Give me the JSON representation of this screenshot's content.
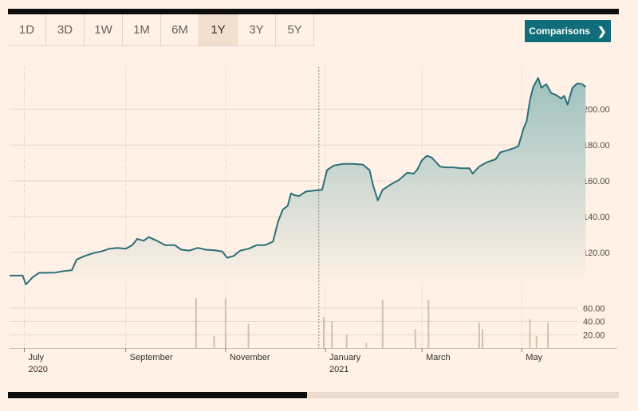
{
  "range_tabs": [
    {
      "label": "1D"
    },
    {
      "label": "3D"
    },
    {
      "label": "1W"
    },
    {
      "label": "1M"
    },
    {
      "label": "6M"
    },
    {
      "label": "1Y",
      "active": true
    },
    {
      "label": "3Y"
    },
    {
      "label": "5Y"
    }
  ],
  "comparisons": {
    "label": "Comparisons",
    "icon": "chevron-right-icon"
  },
  "colors": {
    "line": "#2b6f78",
    "area_top": "#9fc1c0",
    "area_bottom": "#fff1e5",
    "volume_bar": "#d4bfae",
    "background": "#fff1e5"
  },
  "scrollbar": {
    "visible_fraction": 0.49
  },
  "chart_data": {
    "type": "area",
    "title": "",
    "xlabel": "",
    "ylabel": "",
    "grid": true,
    "price_axis": {
      "ylim": [
        103,
        221
      ],
      "ticks": [
        "120.00",
        "140.00",
        "160.00",
        "180.00",
        "200.00"
      ],
      "side": "right"
    },
    "volume_axis": {
      "ylim": [
        0,
        80
      ],
      "ticks": [
        "20.00",
        "40.00",
        "60.00"
      ],
      "side": "right"
    },
    "x_axis": {
      "range": [
        "2020-06-22",
        "2021-06-04"
      ],
      "ticks": [
        {
          "date": "2020-07-01",
          "label": "July",
          "sublabel": "2020"
        },
        {
          "date": "2020-09-01",
          "label": "September",
          "sublabel": ""
        },
        {
          "date": "2020-11-01",
          "label": "November",
          "sublabel": ""
        },
        {
          "date": "2021-01-01",
          "label": "January",
          "sublabel": "2021"
        },
        {
          "date": "2021-03-01",
          "label": "March",
          "sublabel": ""
        },
        {
          "date": "2021-05-01",
          "label": "May",
          "sublabel": ""
        }
      ]
    },
    "price_series": [
      [
        "2020-06-22",
        107.0
      ],
      [
        "2020-06-30",
        107.0
      ],
      [
        "2020-07-02",
        102.0
      ],
      [
        "2020-07-06",
        106.0
      ],
      [
        "2020-07-10",
        108.5
      ],
      [
        "2020-07-20",
        108.7
      ],
      [
        "2020-07-25",
        109.5
      ],
      [
        "2020-07-30",
        110.0
      ],
      [
        "2020-08-02",
        116.0
      ],
      [
        "2020-08-07",
        118.0
      ],
      [
        "2020-08-12",
        119.5
      ],
      [
        "2020-08-17",
        120.5
      ],
      [
        "2020-08-22",
        122.0
      ],
      [
        "2020-08-27",
        122.5
      ],
      [
        "2020-09-01",
        122.0
      ],
      [
        "2020-09-05",
        124.0
      ],
      [
        "2020-09-08",
        127.5
      ],
      [
        "2020-09-12",
        126.5
      ],
      [
        "2020-09-15",
        128.5
      ],
      [
        "2020-09-20",
        126.5
      ],
      [
        "2020-09-25",
        124.0
      ],
      [
        "2020-10-01",
        124.0
      ],
      [
        "2020-10-05",
        121.5
      ],
      [
        "2020-10-10",
        121.0
      ],
      [
        "2020-10-15",
        122.5
      ],
      [
        "2020-10-20",
        121.5
      ],
      [
        "2020-10-25",
        121.2
      ],
      [
        "2020-10-30",
        120.5
      ],
      [
        "2020-11-02",
        117.0
      ],
      [
        "2020-11-06",
        118.0
      ],
      [
        "2020-11-10",
        121.0
      ],
      [
        "2020-11-15",
        122.0
      ],
      [
        "2020-11-20",
        124.0
      ],
      [
        "2020-11-25",
        124.0
      ],
      [
        "2020-11-30",
        126.0
      ],
      [
        "2020-12-03",
        137.0
      ],
      [
        "2020-12-06",
        144.0
      ],
      [
        "2020-12-09",
        146.0
      ],
      [
        "2020-12-11",
        153.0
      ],
      [
        "2020-12-13",
        152.0
      ],
      [
        "2020-12-16",
        151.5
      ],
      [
        "2020-12-20",
        154.0
      ],
      [
        "2020-12-25",
        154.5
      ],
      [
        "2020-12-30",
        155.0
      ],
      [
        "2021-01-02",
        166.0
      ],
      [
        "2021-01-06",
        168.5
      ],
      [
        "2021-01-12",
        169.5
      ],
      [
        "2021-01-18",
        169.5
      ],
      [
        "2021-01-24",
        169.0
      ],
      [
        "2021-01-28",
        166.0
      ],
      [
        "2021-01-30",
        158.0
      ],
      [
        "2021-02-02",
        149.0
      ],
      [
        "2021-02-05",
        155.0
      ],
      [
        "2021-02-10",
        158.0
      ],
      [
        "2021-02-15",
        160.5
      ],
      [
        "2021-02-20",
        164.5
      ],
      [
        "2021-02-24",
        164.0
      ],
      [
        "2021-02-26",
        166.0
      ],
      [
        "2021-03-01",
        171.5
      ],
      [
        "2021-03-04",
        174.0
      ],
      [
        "2021-03-07",
        173.0
      ],
      [
        "2021-03-10",
        170.0
      ],
      [
        "2021-03-12",
        168.0
      ],
      [
        "2021-03-15",
        167.5
      ],
      [
        "2021-03-20",
        167.5
      ],
      [
        "2021-03-25",
        167.0
      ],
      [
        "2021-03-30",
        167.0
      ],
      [
        "2021-04-01",
        164.0
      ],
      [
        "2021-04-05",
        168.0
      ],
      [
        "2021-04-10",
        170.5
      ],
      [
        "2021-04-15",
        172.0
      ],
      [
        "2021-04-18",
        176.0
      ],
      [
        "2021-04-22",
        177.0
      ],
      [
        "2021-04-27",
        178.5
      ],
      [
        "2021-04-29",
        179.5
      ],
      [
        "2021-05-02",
        189.0
      ],
      [
        "2021-05-04",
        193.5
      ],
      [
        "2021-05-06",
        205.0
      ],
      [
        "2021-05-08",
        212.5
      ],
      [
        "2021-05-11",
        217.5
      ],
      [
        "2021-05-13",
        212.0
      ],
      [
        "2021-05-16",
        214.0
      ],
      [
        "2021-05-19",
        209.0
      ],
      [
        "2021-05-22",
        208.0
      ],
      [
        "2021-05-25",
        206.0
      ],
      [
        "2021-05-27",
        207.5
      ],
      [
        "2021-05-29",
        202.5
      ],
      [
        "2021-06-01",
        212.0
      ],
      [
        "2021-06-04",
        214.5
      ],
      [
        "2021-06-07",
        214.0
      ],
      [
        "2021-06-09",
        212.5
      ]
    ],
    "volume_series": [
      [
        "2020-10-14",
        75
      ],
      [
        "2020-10-25",
        18
      ],
      [
        "2020-11-01",
        75
      ],
      [
        "2020-11-15",
        36
      ],
      [
        "2020-12-31",
        46
      ],
      [
        "2021-01-05",
        40
      ],
      [
        "2021-01-14",
        20
      ],
      [
        "2021-01-26",
        8
      ],
      [
        "2021-02-05",
        72
      ],
      [
        "2021-02-25",
        28
      ],
      [
        "2021-03-05",
        72
      ],
      [
        "2021-04-05",
        38
      ],
      [
        "2021-04-07",
        28
      ],
      [
        "2021-05-06",
        43
      ],
      [
        "2021-05-10",
        18
      ],
      [
        "2021-05-17",
        38
      ]
    ]
  }
}
